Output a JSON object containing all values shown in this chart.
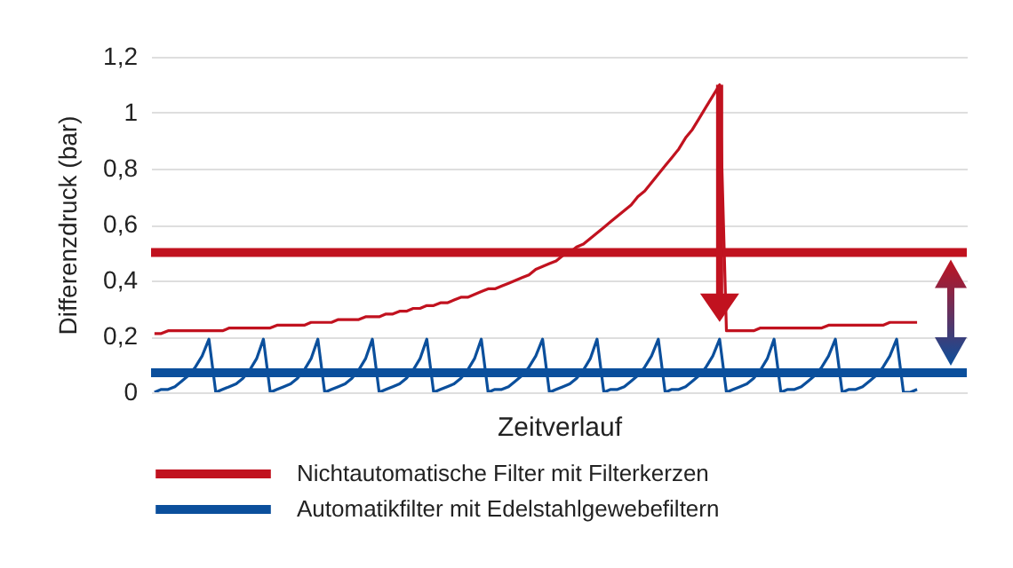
{
  "chart_data": {
    "type": "line",
    "ylabel": "Differenzdruck (bar)",
    "xlabel": "Zeitverlauf",
    "categories": [
      null,
      null,
      null,
      null,
      null,
      null,
      null,
      null,
      null,
      null,
      null,
      null,
      null,
      null,
      null,
      null,
      null,
      null,
      null,
      null,
      null,
      null,
      null,
      null,
      null,
      null,
      null,
      null,
      null,
      null,
      null,
      null,
      null,
      null,
      null,
      null,
      null,
      null,
      null,
      null,
      null,
      null,
      null,
      null,
      null,
      null,
      null,
      null,
      null,
      null,
      null,
      null,
      null,
      null,
      null,
      null,
      null,
      null,
      null,
      null,
      null,
      null,
      null,
      null,
      null,
      null,
      null,
      null,
      null,
      null,
      null,
      null,
      null,
      null,
      null,
      null,
      null,
      null,
      null,
      null,
      null,
      null,
      null,
      null,
      null,
      null,
      null,
      null,
      null,
      null,
      null,
      null,
      null,
      null,
      null,
      null,
      null,
      null,
      null,
      null,
      null,
      null,
      null,
      null,
      null,
      null,
      null,
      null,
      null,
      null,
      null,
      null,
      null
    ],
    "series": [
      {
        "name": "Nichtautomatische Filter mit Filterkerzen",
        "color": "#c1121f",
        "values": [
          0.21,
          0.21,
          0.22,
          0.22,
          0.22,
          0.22,
          0.22,
          0.22,
          0.22,
          0.22,
          0.22,
          0.23,
          0.23,
          0.23,
          0.23,
          0.23,
          0.23,
          0.23,
          0.24,
          0.24,
          0.24,
          0.24,
          0.24,
          0.25,
          0.25,
          0.25,
          0.25,
          0.26,
          0.26,
          0.26,
          0.26,
          0.27,
          0.27,
          0.27,
          0.28,
          0.28,
          0.29,
          0.29,
          0.3,
          0.3,
          0.31,
          0.31,
          0.32,
          0.32,
          0.33,
          0.34,
          0.34,
          0.35,
          0.36,
          0.37,
          0.37,
          0.38,
          0.39,
          0.4,
          0.41,
          0.42,
          0.44,
          0.45,
          0.46,
          0.47,
          0.49,
          0.5,
          0.52,
          0.53,
          0.55,
          0.57,
          0.59,
          0.61,
          0.63,
          0.65,
          0.67,
          0.7,
          0.72,
          0.75,
          0.78,
          0.81,
          0.84,
          0.87,
          0.91,
          0.94,
          0.98,
          1.02,
          1.06,
          1.1,
          0.22,
          0.22,
          0.22,
          0.22,
          0.22,
          0.23,
          0.23,
          0.23,
          0.23,
          0.23,
          0.23,
          0.23,
          0.23,
          0.23,
          0.23,
          0.24,
          0.24,
          0.24,
          0.24,
          0.24,
          0.24,
          0.24,
          0.24,
          0.24,
          0.25,
          0.25,
          0.25,
          0.25,
          0.25
        ]
      },
      {
        "name": "Automatikfilter mit Edelstahlgewebefiltern",
        "color": "#0b4f9c",
        "values": [
          0,
          0.01,
          0.01,
          0.02,
          0.04,
          0.06,
          0.09,
          0.13,
          0.19,
          0,
          0.01,
          0.02,
          0.03,
          0.05,
          0.08,
          0.12,
          0.19,
          0,
          0.01,
          0.02,
          0.03,
          0.05,
          0.08,
          0.12,
          0.19,
          0,
          0.01,
          0.02,
          0.03,
          0.05,
          0.08,
          0.12,
          0.19,
          0,
          0.01,
          0.02,
          0.03,
          0.05,
          0.08,
          0.12,
          0.19,
          0,
          0.01,
          0.02,
          0.03,
          0.05,
          0.08,
          0.12,
          0.19,
          0,
          0.01,
          0.01,
          0.02,
          0.04,
          0.06,
          0.09,
          0.13,
          0.19,
          0,
          0.01,
          0.02,
          0.03,
          0.05,
          0.08,
          0.12,
          0.19,
          0,
          0.01,
          0.01,
          0.02,
          0.04,
          0.06,
          0.09,
          0.13,
          0.19,
          0,
          0.01,
          0.01,
          0.02,
          0.04,
          0.06,
          0.09,
          0.13,
          0.19,
          0,
          0.01,
          0.02,
          0.03,
          0.05,
          0.08,
          0.12,
          0.19,
          0,
          0.01,
          0.01,
          0.02,
          0.04,
          0.06,
          0.09,
          0.13,
          0.19,
          0,
          0.01,
          0.01,
          0.02,
          0.04,
          0.06,
          0.09,
          0.13,
          0.19,
          0,
          0,
          0.01
        ]
      }
    ],
    "ref_lines": [
      {
        "axis": "y",
        "value": 0.5,
        "color": "#c1121f"
      },
      {
        "axis": "y",
        "value": 0.07,
        "color": "#0b4f9c"
      }
    ],
    "ylim": [
      0,
      1.2
    ],
    "yticks": [
      0,
      {
        "value": 0.2,
        "label": "0,2"
      },
      {
        "value": 0.4,
        "label": "0,4"
      },
      {
        "value": 0.6,
        "label": "0,6"
      },
      {
        "value": 0.8,
        "label": "0,8"
      },
      1,
      {
        "value": 1.2,
        "label": "1,2"
      }
    ],
    "grid": "y",
    "legend": "bottom",
    "tick_labels": "y"
  }
}
